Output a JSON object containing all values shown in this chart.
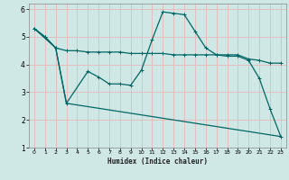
{
  "xlabel": "Humidex (Indice chaleur)",
  "bg_color": "#cfe8e5",
  "grid_color": "#e8b8b8",
  "line_color": "#006666",
  "xlim": [
    -0.5,
    23.5
  ],
  "ylim": [
    1,
    6.2
  ],
  "xticks": [
    0,
    1,
    2,
    3,
    4,
    5,
    6,
    7,
    8,
    9,
    10,
    11,
    12,
    13,
    14,
    15,
    16,
    17,
    18,
    19,
    20,
    21,
    22,
    23
  ],
  "yticks": [
    1,
    2,
    3,
    4,
    5,
    6
  ],
  "line1_x": [
    0,
    1,
    2,
    3,
    4,
    5,
    6,
    7,
    8,
    9,
    10,
    11,
    12,
    13,
    14,
    15,
    16,
    17,
    18,
    19,
    20,
    21,
    22,
    23
  ],
  "line1_y": [
    5.3,
    5.0,
    4.6,
    4.5,
    4.5,
    4.45,
    4.45,
    4.45,
    4.45,
    4.4,
    4.4,
    4.4,
    4.4,
    4.35,
    4.35,
    4.35,
    4.35,
    4.35,
    4.35,
    4.35,
    4.2,
    4.15,
    4.05,
    4.05
  ],
  "line2_x": [
    0,
    1,
    2,
    3,
    5,
    6,
    7,
    8,
    9,
    10,
    11,
    12,
    13,
    14,
    15,
    16,
    17,
    18,
    19,
    20,
    21,
    22,
    23
  ],
  "line2_y": [
    5.3,
    5.0,
    4.6,
    2.6,
    3.75,
    3.55,
    3.3,
    3.3,
    3.25,
    3.8,
    4.9,
    5.9,
    5.85,
    5.8,
    5.2,
    4.6,
    4.35,
    4.3,
    4.3,
    4.15,
    3.5,
    2.4,
    1.4
  ],
  "line3_x": [
    0,
    2,
    3,
    23
  ],
  "line3_y": [
    5.3,
    4.6,
    2.6,
    1.4
  ]
}
